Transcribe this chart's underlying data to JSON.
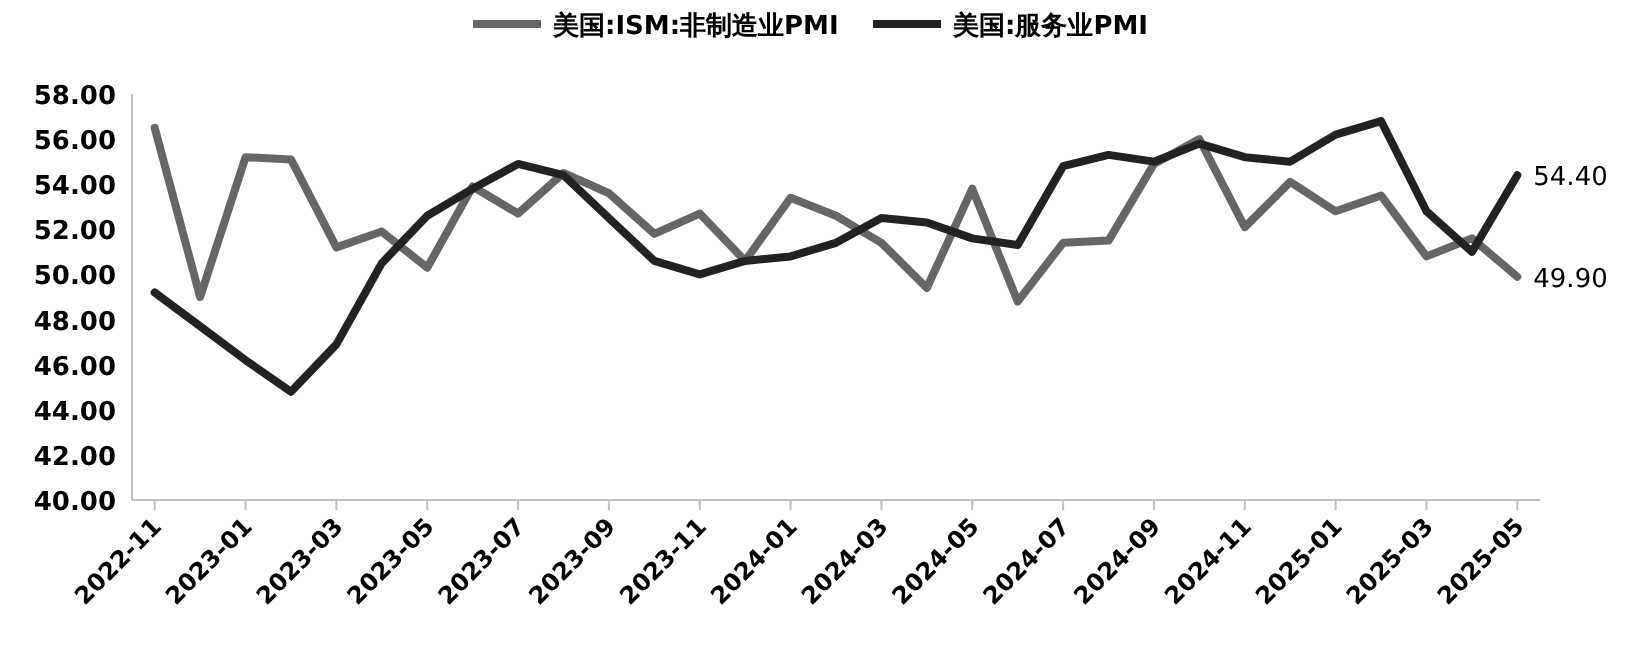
{
  "chart_data": {
    "type": "line",
    "legend": "top",
    "categories": [
      "2022-11",
      null,
      "2023-01",
      null,
      "2023-03",
      null,
      "2023-05",
      null,
      "2023-07",
      null,
      "2023-09",
      null,
      "2023-11",
      null,
      "2024-01",
      null,
      "2024-03",
      null,
      "2024-05",
      null,
      "2024-07",
      null,
      "2024-09",
      null,
      "2024-11",
      null,
      "2025-01",
      null,
      "2025-03",
      null,
      "2025-05"
    ],
    "series": [
      {
        "name": "美国:ISM:非制造业PMI",
        "color": "#666666",
        "values": [
          56.5,
          49.0,
          55.2,
          55.1,
          51.2,
          51.9,
          50.3,
          53.9,
          52.7,
          54.5,
          53.6,
          51.8,
          52.7,
          50.6,
          53.4,
          52.6,
          51.4,
          49.4,
          53.8,
          48.8,
          51.4,
          51.5,
          54.9,
          56.0,
          52.1,
          54.1,
          52.8,
          53.5,
          50.8,
          51.6,
          49.9
        ],
        "value_labels": [
          null,
          null,
          null,
          null,
          null,
          null,
          null,
          null,
          null,
          null,
          null,
          null,
          null,
          null,
          null,
          null,
          null,
          null,
          null,
          null,
          null,
          null,
          null,
          null,
          null,
          null,
          null,
          null,
          null,
          null,
          "49.90"
        ]
      },
      {
        "name": "美国:服务业PMI",
        "color": "#222222",
        "values": [
          49.2,
          47.7,
          46.2,
          44.8,
          46.9,
          50.5,
          52.6,
          53.8,
          54.9,
          54.4,
          52.5,
          50.6,
          50.0,
          50.6,
          50.8,
          51.4,
          52.5,
          52.3,
          51.6,
          51.3,
          54.8,
          55.3,
          55.0,
          55.8,
          55.2,
          55.0,
          56.2,
          56.8,
          52.8,
          51.0,
          54.4
        ],
        "value_labels": [
          null,
          null,
          null,
          null,
          null,
          null,
          null,
          null,
          null,
          null,
          null,
          null,
          null,
          null,
          null,
          null,
          null,
          null,
          null,
          null,
          null,
          null,
          null,
          null,
          null,
          null,
          null,
          null,
          null,
          null,
          "54.40"
        ]
      }
    ],
    "ylim": [
      40,
      58
    ],
    "yticks": [
      {
        "value": 40,
        "label": "40.00"
      },
      {
        "value": 42,
        "label": "42.00"
      },
      {
        "value": 44,
        "label": "44.00"
      },
      {
        "value": 46,
        "label": "46.00"
      },
      {
        "value": 48,
        "label": "48.00"
      },
      {
        "value": 50,
        "label": "50.00"
      },
      {
        "value": 52,
        "label": "52.00"
      },
      {
        "value": 54,
        "label": "54.00"
      },
      {
        "value": 56,
        "label": "56.00"
      },
      {
        "value": 58,
        "label": "58.00"
      }
    ]
  }
}
